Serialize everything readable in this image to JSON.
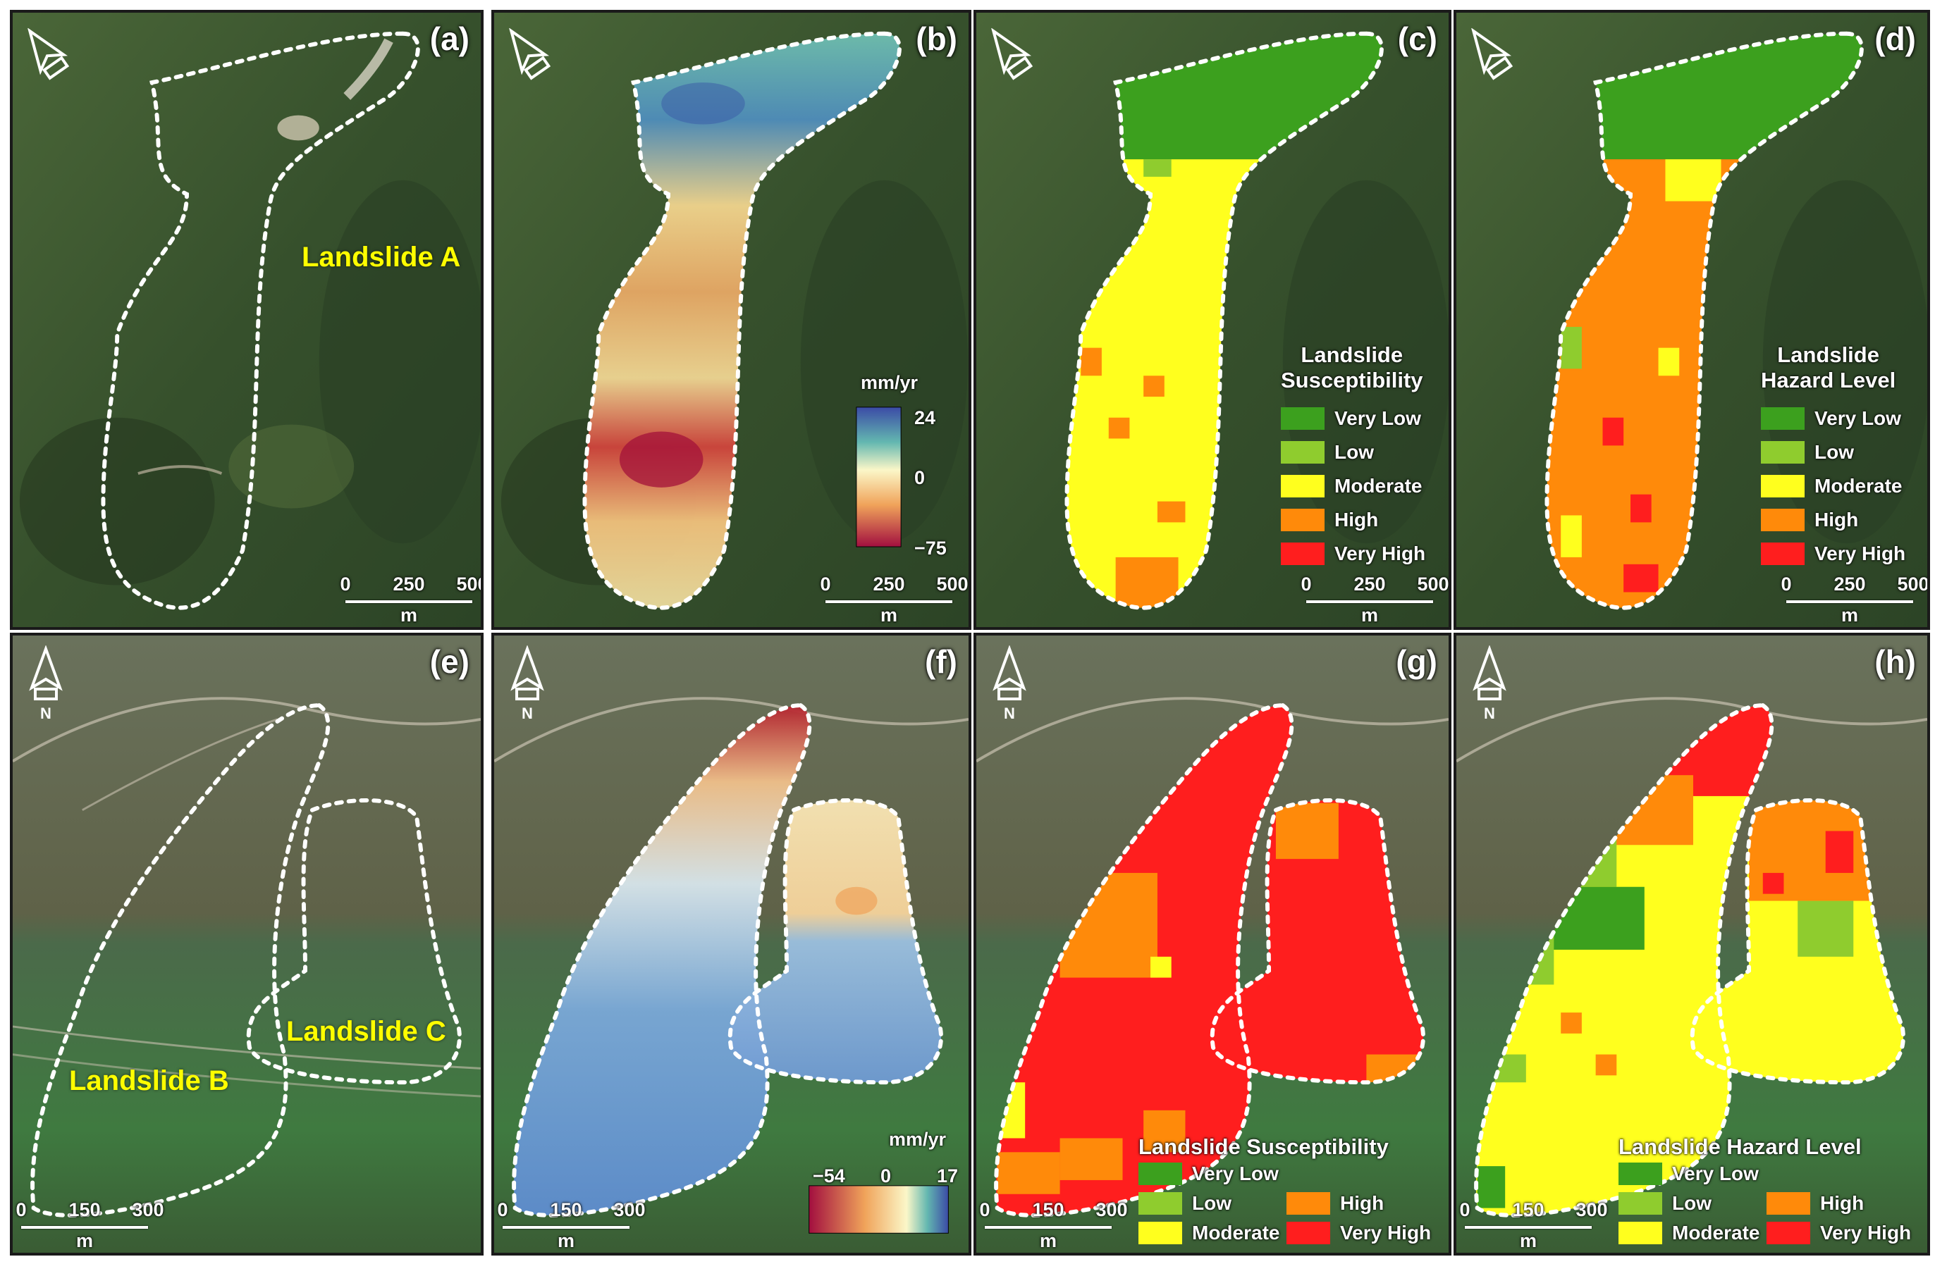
{
  "panels": [
    {
      "letter": "(a)"
    },
    {
      "letter": "(b)"
    },
    {
      "letter": "(c)"
    },
    {
      "letter": "(d)"
    },
    {
      "letter": "(e)"
    },
    {
      "letter": "(f)"
    },
    {
      "letter": "(g)"
    },
    {
      "letter": "(h)"
    }
  ],
  "labels": {
    "landslide_a": "Landslide A",
    "landslide_b": "Landslide B",
    "landslide_c": "Landslide C"
  },
  "scalebar_top": {
    "ticks": [
      "0",
      "250",
      "500"
    ],
    "unit": "m"
  },
  "scalebar_bottom": {
    "ticks": [
      "0",
      "150",
      "300"
    ],
    "unit": "m"
  },
  "north_letter": "N",
  "colorbar_top": {
    "unit": "mm/yr",
    "max": "24",
    "mid": "0",
    "min": "−75",
    "max_value": 24,
    "min_value": -75
  },
  "colorbar_bottom": {
    "unit": "mm/yr",
    "min": "−54",
    "mid": "0",
    "max": "17",
    "max_value": 17,
    "min_value": -54
  },
  "legend_susceptibility": {
    "title_two_line": [
      "Landslide",
      "Susceptibility"
    ],
    "title_one_line": "Landslide Susceptibility"
  },
  "legend_hazard": {
    "title_two_line": [
      "Landslide",
      "Hazard Level"
    ],
    "title_one_line": "Landslide Hazard Level"
  },
  "classes": [
    {
      "name": "Very Low",
      "color": "#3ca01e"
    },
    {
      "name": "Low",
      "color": "#8fcc2e"
    },
    {
      "name": "Moderate",
      "color": "#ffff1e"
    },
    {
      "name": "High",
      "color": "#ff8a0a"
    },
    {
      "name": "Very High",
      "color": "#ff1e1e"
    }
  ],
  "colors": {
    "imagery_top": "#3c5630",
    "imagery_bottom": "#5c6a4e",
    "boundary": "#ffffff",
    "letter": "#ffffff",
    "landslide_label": "#ffff00"
  }
}
